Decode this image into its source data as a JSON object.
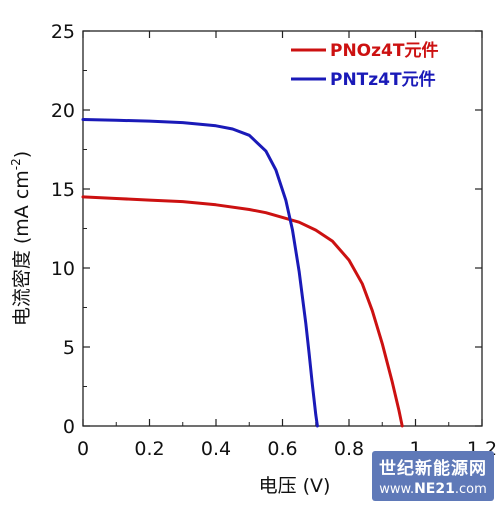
{
  "chart_data": {
    "type": "line",
    "title": "",
    "xlabel": "电压 (V)",
    "ylabel": "电流密度 (mA cm-2)",
    "ylabel_main": "电流密度 (mA cm",
    "ylabel_exp": "-2",
    "ylabel_close": ")",
    "xlim": [
      0,
      1.2
    ],
    "ylim": [
      0,
      25
    ],
    "x_ticks": [
      0,
      0.2,
      0.4,
      0.6,
      0.8,
      1,
      1.2
    ],
    "x_tick_labels": [
      "0",
      "0.2",
      "0.4",
      "0.6",
      "0.8",
      "1",
      "1.2"
    ],
    "y_ticks": [
      0,
      5,
      10,
      15,
      20,
      25
    ],
    "y_tick_labels": [
      "0",
      "5",
      "10",
      "15",
      "20",
      "25"
    ],
    "grid": false,
    "legend_position": "top-right",
    "series": [
      {
        "name": "PNOz4T元件",
        "color": "#cc1111",
        "x": [
          0,
          0.1,
          0.2,
          0.3,
          0.4,
          0.5,
          0.55,
          0.6,
          0.65,
          0.7,
          0.75,
          0.8,
          0.84,
          0.87,
          0.9,
          0.93,
          0.95,
          0.96
        ],
        "y": [
          14.5,
          14.4,
          14.3,
          14.2,
          14.0,
          13.7,
          13.5,
          13.2,
          12.9,
          12.4,
          11.7,
          10.5,
          9.0,
          7.3,
          5.2,
          2.8,
          1.0,
          0
        ]
      },
      {
        "name": "PNTz4T元件",
        "color": "#1a1ab8",
        "x": [
          0,
          0.1,
          0.2,
          0.3,
          0.4,
          0.45,
          0.5,
          0.55,
          0.58,
          0.61,
          0.63,
          0.65,
          0.67,
          0.68,
          0.69,
          0.7,
          0.705
        ],
        "y": [
          19.4,
          19.35,
          19.3,
          19.2,
          19.0,
          18.8,
          18.4,
          17.4,
          16.2,
          14.3,
          12.4,
          9.8,
          6.5,
          4.6,
          2.6,
          0.7,
          0
        ]
      }
    ]
  },
  "watermark": {
    "line1": "世纪新能源网",
    "line2_prefix": "www.",
    "line2_brand": "NE21",
    "line2_suffix": ".com"
  }
}
